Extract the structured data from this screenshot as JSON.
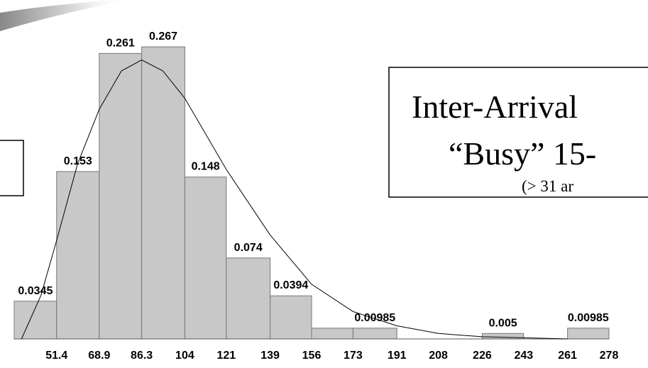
{
  "chart_data": {
    "type": "histogram",
    "bins": [
      34.0,
      51.4,
      68.9,
      86.3,
      104,
      121,
      139,
      156,
      173,
      191,
      208,
      226,
      243,
      261,
      278
    ],
    "values": [
      0.0345,
      0.153,
      0.261,
      0.267,
      0.148,
      0.074,
      0.0394,
      0.00985,
      0.00985,
      0,
      0,
      0.005,
      0,
      0.00985
    ],
    "value_labels": [
      "0.0345",
      "0.153",
      "0.261",
      "0.267",
      "0.148",
      "0.074",
      "0.0394",
      null,
      "0.00985",
      null,
      null,
      "0.005",
      null,
      "0.00985"
    ],
    "color": "#c8c8c8",
    "xlim": [
      34.0,
      278
    ],
    "ylim": [
      0,
      0.28
    ],
    "xticks": [
      51.4,
      68.9,
      86.3,
      104,
      121,
      139,
      156,
      173,
      191,
      208,
      226,
      243,
      261,
      278
    ],
    "curve": {
      "x": [
        37,
        45,
        51.4,
        60,
        68.9,
        78,
        86.3,
        95,
        104,
        121,
        139,
        156,
        173,
        191,
        208,
        226,
        261
      ],
      "values": [
        0,
        0.04,
        0.09,
        0.16,
        0.21,
        0.245,
        0.255,
        0.245,
        0.22,
        0.155,
        0.095,
        0.05,
        0.025,
        0.012,
        0.005,
        0.002,
        0
      ],
      "color": "#000000"
    }
  },
  "title_box": {
    "line1": "Inter-Arrival",
    "line2": "“Busy” 15-",
    "line3": "(> 31 ar"
  }
}
